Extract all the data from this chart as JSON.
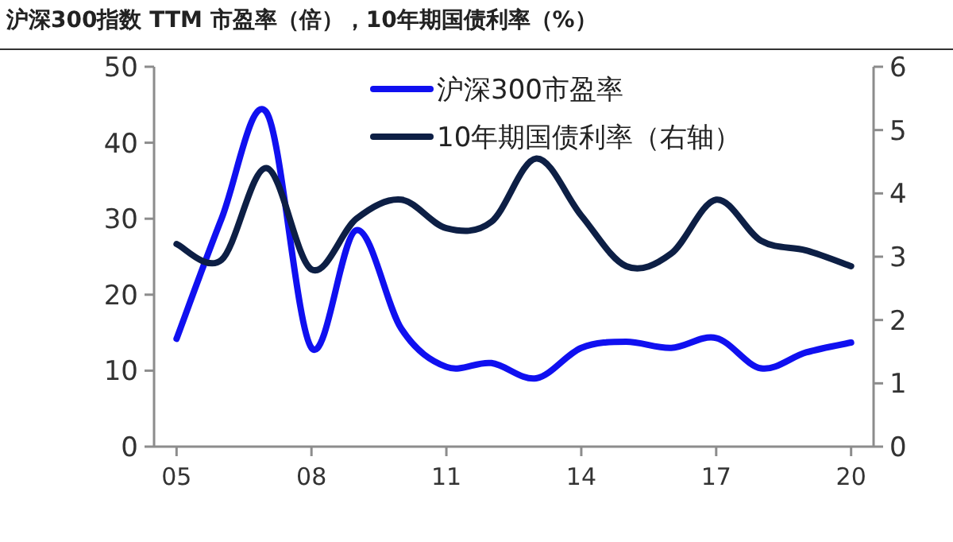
{
  "chart_data": {
    "type": "line",
    "title": "沪深300指数 TTM 市盈率（倍），10年期国债利率（%）",
    "x": [
      2005,
      2006,
      2007,
      2008,
      2009,
      2010,
      2011,
      2012,
      2013,
      2014,
      2015,
      2016,
      2017,
      2018,
      2019,
      2020
    ],
    "xlim": [
      2004.5,
      2020.5
    ],
    "xticks": [
      {
        "value": 2005,
        "label": "05"
      },
      {
        "value": 2008,
        "label": "08"
      },
      {
        "value": 2011,
        "label": "11"
      },
      {
        "value": 2014,
        "label": "14"
      },
      {
        "value": 2017,
        "label": "17"
      },
      {
        "value": 2020,
        "label": "20"
      }
    ],
    "ylim": [
      0,
      50
    ],
    "yticks": [
      0,
      10,
      20,
      30,
      40,
      50
    ],
    "y2lim": [
      0,
      6
    ],
    "y2ticks": [
      0,
      1,
      2,
      3,
      4,
      5,
      6
    ],
    "legend": "top right",
    "grid": false,
    "marker": "none",
    "line_style": "solid",
    "series": [
      {
        "name": "沪深300市盈率",
        "color": "#1010f0",
        "values": [
          14.2,
          30,
          44,
          13,
          28.5,
          15.5,
          10.5,
          11,
          9,
          13,
          13.8,
          13,
          14.3,
          10.3,
          12.4,
          13.7
        ]
      },
      {
        "name": "10年期国债利率（右轴）",
        "color": "#0d1f45",
        "axis": "y2",
        "values": [
          3.2,
          2.95,
          4.4,
          2.8,
          3.6,
          3.9,
          3.45,
          3.55,
          4.55,
          3.65,
          2.85,
          3.05,
          3.9,
          3.25,
          3.1,
          2.85
        ]
      }
    ]
  }
}
